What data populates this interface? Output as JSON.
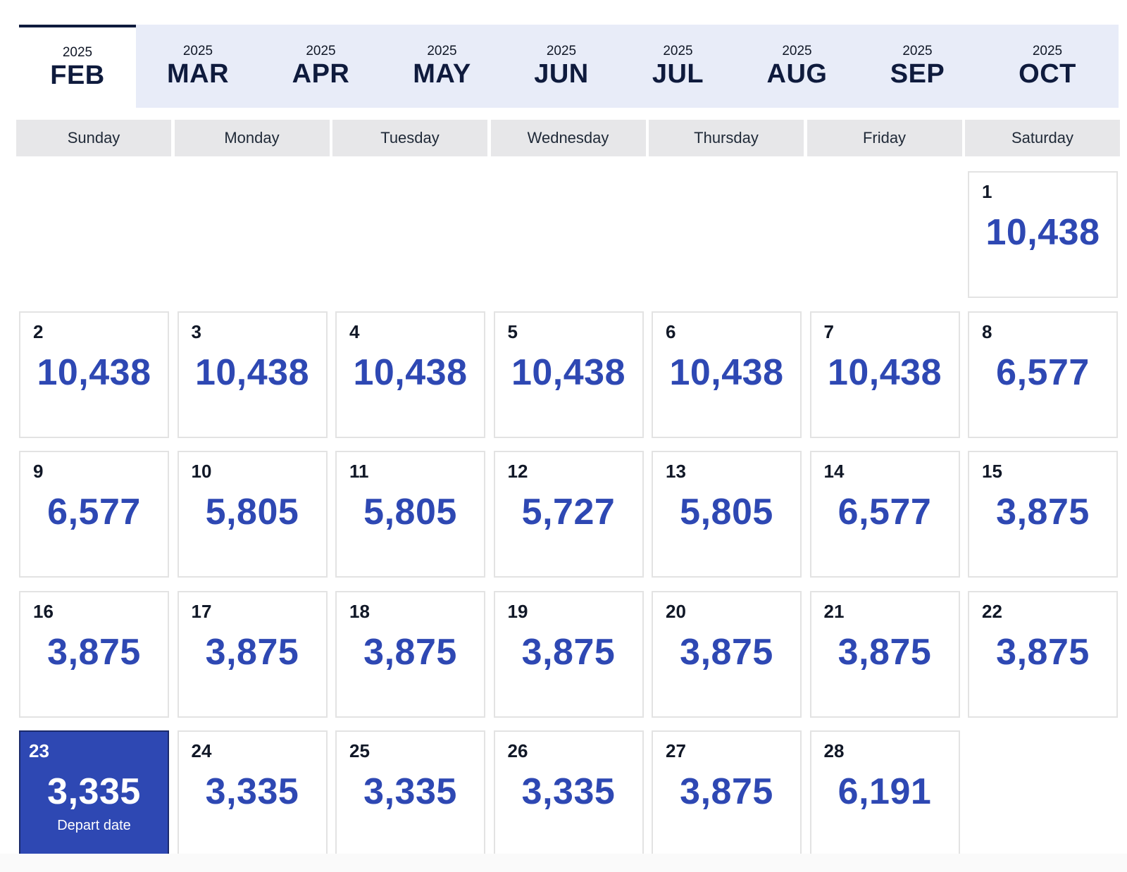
{
  "months": [
    {
      "year": "2025",
      "name": "FEB",
      "active": true
    },
    {
      "year": "2025",
      "name": "MAR"
    },
    {
      "year": "2025",
      "name": "APR"
    },
    {
      "year": "2025",
      "name": "MAY"
    },
    {
      "year": "2025",
      "name": "JUN"
    },
    {
      "year": "2025",
      "name": "JUL"
    },
    {
      "year": "2025",
      "name": "AUG"
    },
    {
      "year": "2025",
      "name": "SEP"
    },
    {
      "year": "2025",
      "name": "OCT"
    }
  ],
  "weekdays": [
    "Sunday",
    "Monday",
    "Tuesday",
    "Wednesday",
    "Thursday",
    "Friday",
    "Saturday"
  ],
  "calendar": {
    "leading_blank_days": 6,
    "days": [
      {
        "day": "1",
        "price": "10,438"
      },
      {
        "day": "2",
        "price": "10,438"
      },
      {
        "day": "3",
        "price": "10,438"
      },
      {
        "day": "4",
        "price": "10,438"
      },
      {
        "day": "5",
        "price": "10,438"
      },
      {
        "day": "6",
        "price": "10,438"
      },
      {
        "day": "7",
        "price": "10,438"
      },
      {
        "day": "8",
        "price": "6,577"
      },
      {
        "day": "9",
        "price": "6,577"
      },
      {
        "day": "10",
        "price": "5,805"
      },
      {
        "day": "11",
        "price": "5,805"
      },
      {
        "day": "12",
        "price": "5,727"
      },
      {
        "day": "13",
        "price": "5,805"
      },
      {
        "day": "14",
        "price": "6,577"
      },
      {
        "day": "15",
        "price": "3,875"
      },
      {
        "day": "16",
        "price": "3,875"
      },
      {
        "day": "17",
        "price": "3,875"
      },
      {
        "day": "18",
        "price": "3,875"
      },
      {
        "day": "19",
        "price": "3,875"
      },
      {
        "day": "20",
        "price": "3,875"
      },
      {
        "day": "21",
        "price": "3,875"
      },
      {
        "day": "22",
        "price": "3,875"
      },
      {
        "day": "23",
        "price": "3,335",
        "selected": true,
        "sub_label": "Depart date"
      },
      {
        "day": "24",
        "price": "3,335"
      },
      {
        "day": "25",
        "price": "3,335"
      },
      {
        "day": "26",
        "price": "3,335"
      },
      {
        "day": "27",
        "price": "3,875"
      },
      {
        "day": "28",
        "price": "6,191"
      }
    ]
  },
  "colors": {
    "accent": "#2e48b3",
    "tab_bar_bg": "#e8ecf8",
    "weekday_bg": "#e7e7e9",
    "active_tab_indicator": "#0f1b3d"
  }
}
